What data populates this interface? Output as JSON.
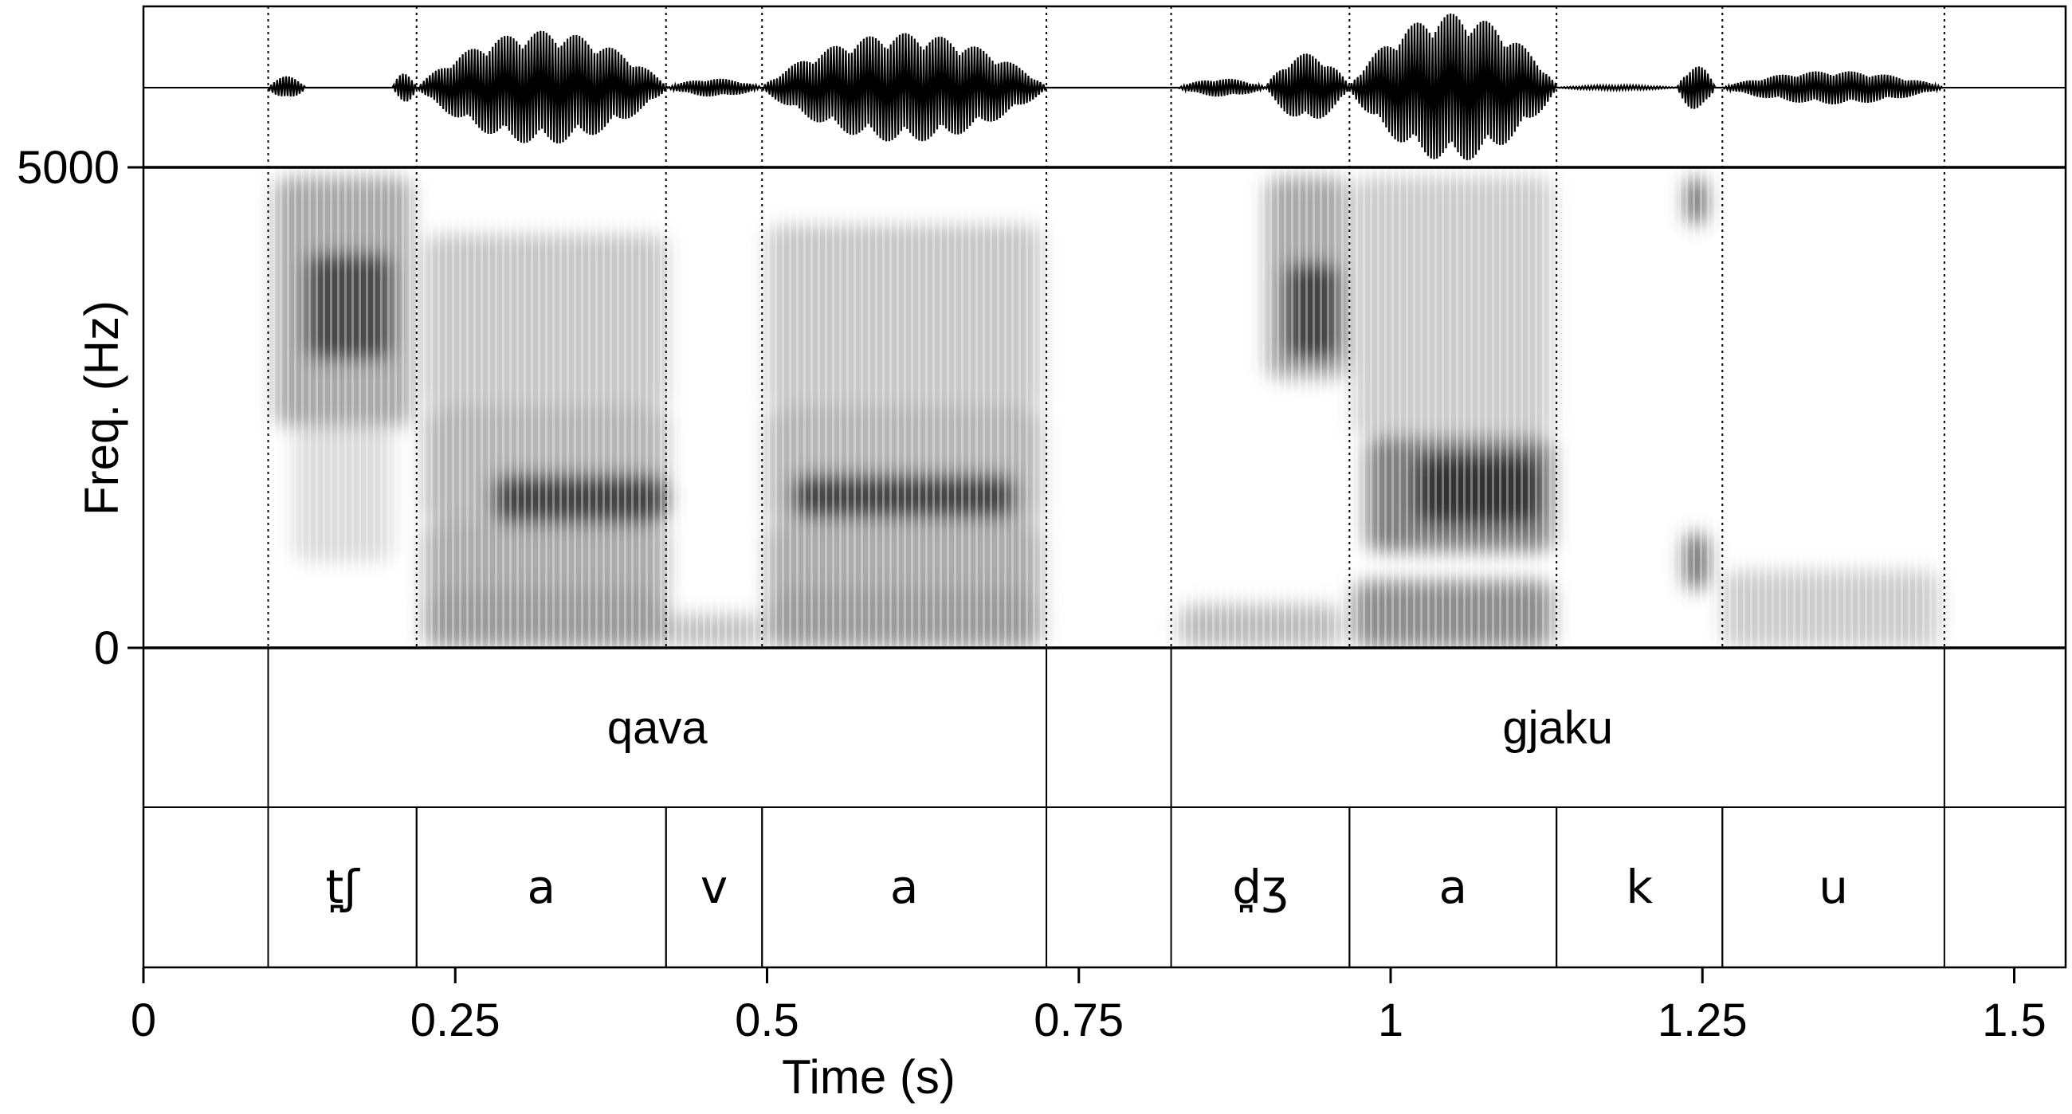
{
  "chart_data": {
    "type": "spectrogram",
    "panels": [
      "waveform",
      "spectrogram",
      "word-tier",
      "segment-tier"
    ],
    "x_axis": {
      "label": "Time (s)",
      "range": [
        0,
        1.545
      ],
      "ticks": [
        {
          "value": 0,
          "label": "0"
        },
        {
          "value": 0.25,
          "label": "0.25"
        },
        {
          "value": 0.5,
          "label": "0.5"
        },
        {
          "value": 0.75,
          "label": "0.75"
        },
        {
          "value": 1,
          "label": "1"
        },
        {
          "value": 1.25,
          "label": "1.25"
        },
        {
          "value": 1.5,
          "label": "1.5"
        }
      ]
    },
    "y_axis": {
      "label": "Freq. (Hz)",
      "range": [
        0,
        5000
      ],
      "ticks": [
        {
          "value": 5000,
          "label": "5000"
        },
        {
          "value": 0,
          "label": "0"
        }
      ]
    },
    "words": [
      {
        "label": "qava",
        "start": 0.1,
        "end": 0.724
      },
      {
        "label": "gjaku",
        "start": 0.824,
        "end": 1.444
      }
    ],
    "segments": [
      {
        "label": "t̪ʃ",
        "start": 0.1,
        "end": 0.219
      },
      {
        "label": "a",
        "start": 0.219,
        "end": 0.419
      },
      {
        "label": "v",
        "start": 0.419,
        "end": 0.496
      },
      {
        "label": "a",
        "start": 0.496,
        "end": 0.724
      },
      {
        "label": "d̪ʒ",
        "start": 0.824,
        "end": 0.967
      },
      {
        "label": "a",
        "start": 0.967,
        "end": 1.133
      },
      {
        "label": "k",
        "start": 1.133,
        "end": 1.266
      },
      {
        "label": "u",
        "start": 1.266,
        "end": 1.444
      }
    ],
    "grid": false
  }
}
